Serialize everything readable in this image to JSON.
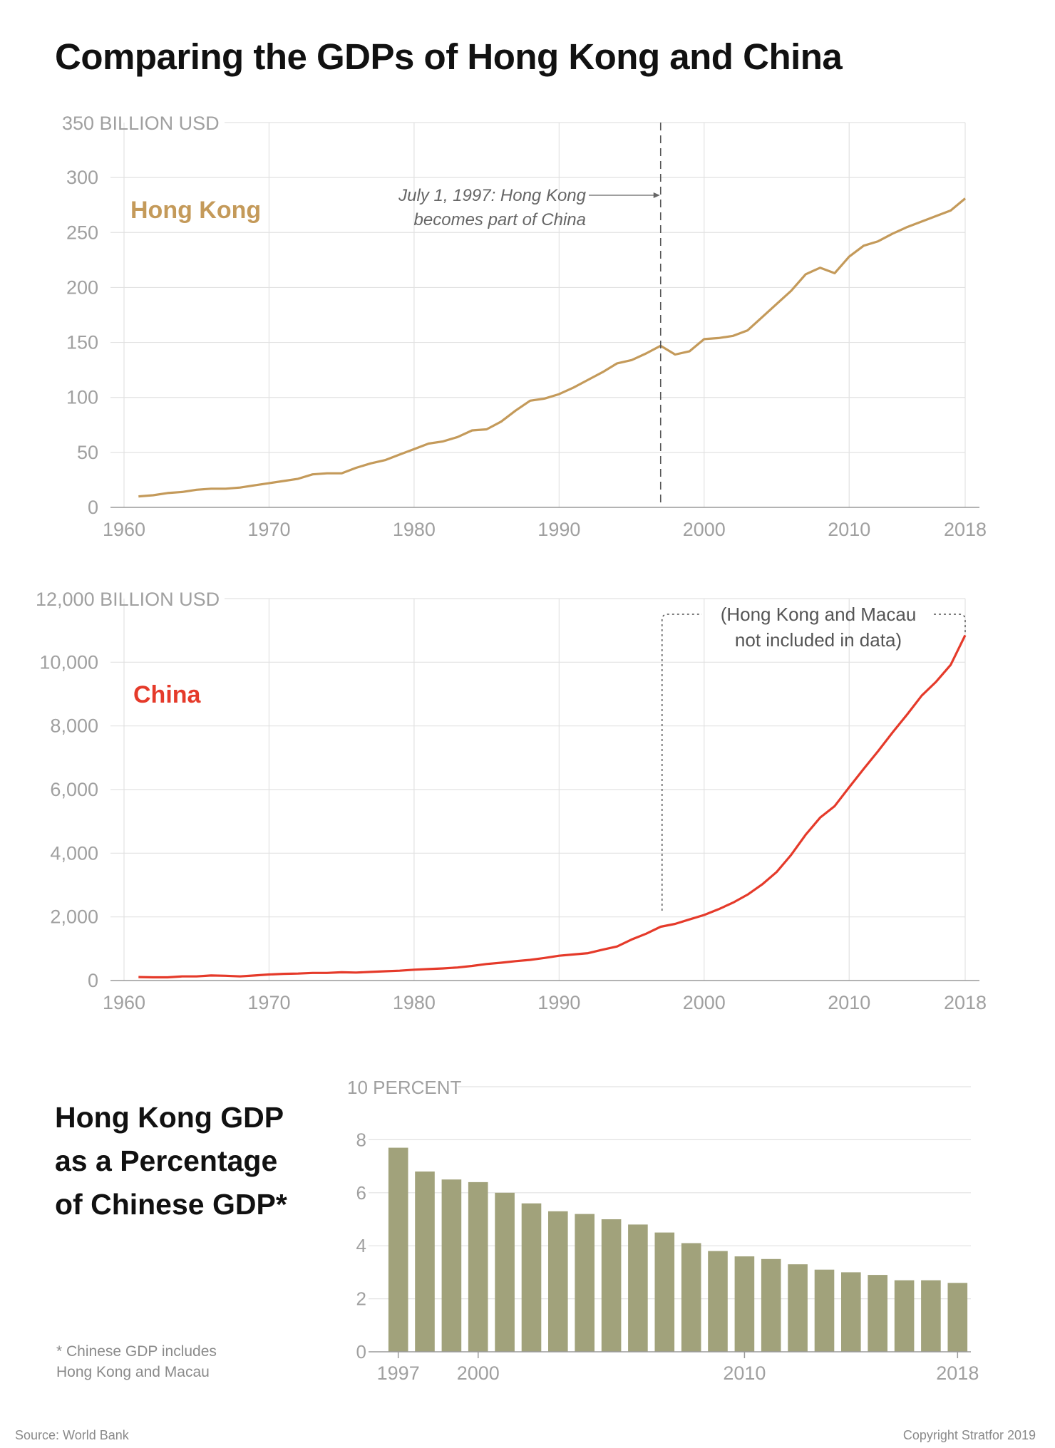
{
  "title": "Comparing the GDPs of Hong Kong and China",
  "colors": {
    "hong_kong": "#c49a5a",
    "china": "#e53a2a",
    "bars": "#a1a27b",
    "axis_text": "#a0a0a0",
    "grid": "#e2e2e2"
  },
  "chart_data": [
    {
      "type": "line",
      "series_label": "Hong Kong",
      "ylabel": "350 BILLION USD",
      "ylim": [
        0,
        350
      ],
      "yticks": [
        0,
        50,
        100,
        150,
        200,
        250,
        300
      ],
      "xlim": [
        1960,
        2018
      ],
      "xticks": [
        1960,
        1970,
        1980,
        1990,
        2000,
        2010,
        2018
      ],
      "grid": true,
      "annotation": {
        "x": 1997,
        "lines": [
          "July 1, 1997: Hong Kong",
          "becomes part of China"
        ]
      },
      "x": [
        1961,
        1962,
        1963,
        1964,
        1965,
        1966,
        1967,
        1968,
        1969,
        1970,
        1971,
        1972,
        1973,
        1974,
        1975,
        1976,
        1977,
        1978,
        1979,
        1980,
        1981,
        1982,
        1983,
        1984,
        1985,
        1986,
        1987,
        1988,
        1989,
        1990,
        1991,
        1992,
        1993,
        1994,
        1995,
        1996,
        1997,
        1998,
        1999,
        2000,
        2001,
        2002,
        2003,
        2004,
        2005,
        2006,
        2007,
        2008,
        2009,
        2010,
        2011,
        2012,
        2013,
        2014,
        2015,
        2016,
        2017,
        2018
      ],
      "values": [
        10,
        11,
        13,
        14,
        16,
        17,
        17,
        18,
        20,
        22,
        24,
        26,
        30,
        31,
        31,
        36,
        40,
        43,
        48,
        53,
        58,
        60,
        64,
        70,
        71,
        78,
        88,
        97,
        99,
        103,
        109,
        116,
        123,
        131,
        134,
        140,
        147,
        139,
        142,
        153,
        154,
        156,
        161,
        173,
        185,
        197,
        212,
        218,
        213,
        228,
        238,
        242,
        249,
        255,
        260,
        265,
        270,
        281
      ]
    },
    {
      "type": "line",
      "series_label": "China",
      "ylabel": "12,000 BILLION USD",
      "ylim": [
        0,
        12000
      ],
      "yticks": [
        0,
        2000,
        4000,
        6000,
        8000,
        10000
      ],
      "ytick_labels": [
        "0",
        "2,000",
        "4,000",
        "6,000",
        "8,000",
        "10,000"
      ],
      "xlim": [
        1960,
        2018
      ],
      "xticks": [
        1960,
        1970,
        1980,
        1990,
        2000,
        2010,
        2018
      ],
      "grid": true,
      "annotation": {
        "x_start": 1997,
        "x_end": 2018,
        "lines": [
          "(Hong Kong and Macau",
          "not included in data)"
        ]
      },
      "x": [
        1961,
        1962,
        1963,
        1964,
        1965,
        1966,
        1967,
        1968,
        1969,
        1970,
        1971,
        1972,
        1973,
        1974,
        1975,
        1976,
        1977,
        1978,
        1979,
        1980,
        1981,
        1982,
        1983,
        1984,
        1985,
        1986,
        1987,
        1988,
        1989,
        1990,
        1991,
        1992,
        1993,
        1994,
        1995,
        1996,
        1997,
        1998,
        1999,
        2000,
        2001,
        2002,
        2003,
        2004,
        2005,
        2006,
        2007,
        2008,
        2009,
        2010,
        2011,
        2012,
        2013,
        2014,
        2015,
        2016,
        2017,
        2018
      ],
      "values": [
        110,
        100,
        100,
        130,
        130,
        160,
        150,
        130,
        160,
        190,
        210,
        220,
        240,
        240,
        260,
        250,
        270,
        290,
        310,
        340,
        360,
        380,
        410,
        460,
        520,
        560,
        610,
        650,
        710,
        780,
        820,
        860,
        970,
        1070,
        1290,
        1470,
        1690,
        1780,
        1920,
        2060,
        2240,
        2450,
        2700,
        3020,
        3410,
        3950,
        4580,
        5120,
        5480,
        6070,
        6650,
        7210,
        7800,
        8360,
        8950,
        9390,
        9920,
        10850
      ]
    },
    {
      "type": "bar",
      "title": [
        "Hong Kong GDP",
        "as a Percentage",
        "of Chinese GDP*"
      ],
      "ylabel": "10 PERCENT",
      "ylim": [
        0,
        10
      ],
      "yticks": [
        0,
        2,
        4,
        6,
        8
      ],
      "xticks": [
        1997,
        2000,
        2010,
        2018
      ],
      "grid": true,
      "categories": [
        1997,
        1998,
        1999,
        2000,
        2001,
        2002,
        2003,
        2004,
        2005,
        2006,
        2007,
        2008,
        2009,
        2010,
        2011,
        2012,
        2013,
        2014,
        2015,
        2016,
        2017,
        2018
      ],
      "values": [
        7.7,
        6.8,
        6.5,
        6.4,
        6.0,
        5.6,
        5.3,
        5.2,
        5.0,
        4.8,
        4.5,
        4.1,
        3.8,
        3.6,
        3.5,
        3.3,
        3.1,
        3.0,
        2.9,
        2.7,
        2.7,
        2.6
      ]
    }
  ],
  "footnote": [
    "* Chinese GDP includes",
    "Hong Kong and Macau"
  ],
  "source": "Source: World Bank",
  "copyright": "Copyright Stratfor 2019"
}
